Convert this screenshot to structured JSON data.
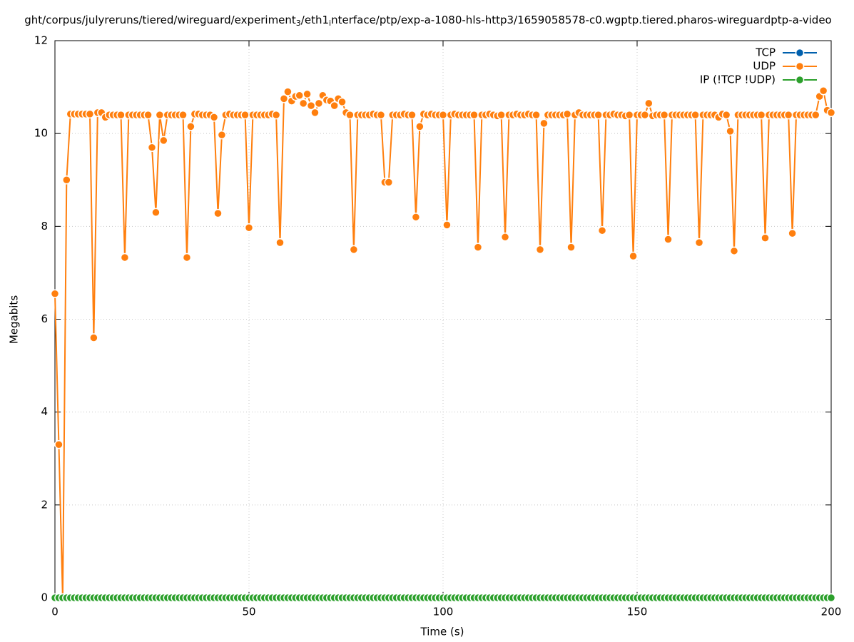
{
  "chart_data": {
    "type": "line",
    "title": [
      "ght/corpus/julyreruns/tiered/wireguard/experiment",
      "3",
      "/eth1",
      "i",
      "nterface/ptp/exp-a-1080-hls-http3/1659058578-c0.wgptp.tiered.pharos-wireguardptp-a-video"
    ],
    "x_label": "Time (s)",
    "y_label": "Megabits",
    "xlim": [
      0,
      200
    ],
    "xticks": [
      0,
      50,
      100,
      150,
      200
    ],
    "ylim": [
      0,
      12
    ],
    "yticks": [
      0,
      2,
      4,
      6,
      8,
      10,
      12
    ],
    "grid": true,
    "legend": "top-right",
    "x": [
      0,
      1,
      2,
      3,
      4,
      5,
      6,
      7,
      8,
      9,
      10,
      11,
      12,
      13,
      14,
      15,
      16,
      17,
      18,
      19,
      20,
      21,
      22,
      23,
      24,
      25,
      26,
      27,
      28,
      29,
      30,
      31,
      32,
      33,
      34,
      35,
      36,
      37,
      38,
      39,
      40,
      41,
      42,
      43,
      44,
      45,
      46,
      47,
      48,
      49,
      50,
      51,
      52,
      53,
      54,
      55,
      56,
      57,
      58,
      59,
      60,
      61,
      62,
      63,
      64,
      65,
      66,
      67,
      68,
      69,
      70,
      71,
      72,
      73,
      74,
      75,
      76,
      77,
      78,
      79,
      80,
      81,
      82,
      83,
      84,
      85,
      86,
      87,
      88,
      89,
      90,
      91,
      92,
      93,
      94,
      95,
      96,
      97,
      98,
      99,
      100,
      101,
      102,
      103,
      104,
      105,
      106,
      107,
      108,
      109,
      110,
      111,
      112,
      113,
      114,
      115,
      116,
      117,
      118,
      119,
      120,
      121,
      122,
      123,
      124,
      125,
      126,
      127,
      128,
      129,
      130,
      131,
      132,
      133,
      134,
      135,
      136,
      137,
      138,
      139,
      140,
      141,
      142,
      143,
      144,
      145,
      146,
      147,
      148,
      149,
      150,
      151,
      152,
      153,
      154,
      155,
      156,
      157,
      158,
      159,
      160,
      161,
      162,
      163,
      164,
      165,
      166,
      167,
      168,
      169,
      170,
      171,
      172,
      173,
      174,
      175,
      176,
      177,
      178,
      179,
      180,
      181,
      182,
      183,
      184,
      185,
      186,
      187,
      188,
      189,
      190,
      191,
      192,
      193,
      194,
      195,
      196,
      197,
      198,
      199,
      200
    ],
    "series": [
      {
        "name": "TCP",
        "color": "#0060ad",
        "values": [
          0,
          0,
          0,
          0,
          0,
          0,
          0,
          0,
          0,
          0,
          0,
          0,
          0,
          0,
          0,
          0,
          0,
          0,
          0,
          0,
          0,
          0,
          0,
          0,
          0,
          0,
          0,
          0,
          0,
          0,
          0,
          0,
          0,
          0,
          0,
          0,
          0,
          0,
          0,
          0,
          0,
          0,
          0,
          0,
          0,
          0,
          0,
          0,
          0,
          0,
          0,
          0,
          0,
          0,
          0,
          0,
          0,
          0,
          0,
          0,
          0,
          0,
          0,
          0,
          0,
          0,
          0,
          0,
          0,
          0,
          0,
          0,
          0,
          0,
          0,
          0,
          0,
          0,
          0,
          0,
          0,
          0,
          0,
          0,
          0,
          0,
          0,
          0,
          0,
          0,
          0,
          0,
          0,
          0,
          0,
          0,
          0,
          0,
          0,
          0,
          0,
          0,
          0,
          0,
          0,
          0,
          0,
          0,
          0,
          0,
          0,
          0,
          0,
          0,
          0,
          0,
          0,
          0,
          0,
          0,
          0,
          0,
          0,
          0,
          0,
          0,
          0,
          0,
          0,
          0,
          0,
          0,
          0,
          0,
          0,
          0,
          0,
          0,
          0,
          0,
          0,
          0,
          0,
          0,
          0,
          0,
          0,
          0,
          0,
          0,
          0,
          0,
          0,
          0,
          0,
          0,
          0,
          0,
          0,
          0,
          0,
          0,
          0,
          0,
          0,
          0,
          0,
          0,
          0,
          0,
          0,
          0,
          0,
          0,
          0,
          0,
          0,
          0,
          0,
          0,
          0,
          0,
          0,
          0,
          0,
          0,
          0,
          0,
          0,
          0,
          0,
          0,
          0,
          0,
          0,
          0,
          0,
          0,
          0,
          0,
          0
        ]
      },
      {
        "name": "UDP",
        "color": "#ff7f0e",
        "values": [
          6.55,
          3.3,
          0,
          9.0,
          10.42,
          10.42,
          10.42,
          10.42,
          10.42,
          10.42,
          5.6,
          10.45,
          10.45,
          10.35,
          10.4,
          10.4,
          10.4,
          10.4,
          7.33,
          10.4,
          10.4,
          10.4,
          10.4,
          10.4,
          10.4,
          9.7,
          8.3,
          10.4,
          9.85,
          10.4,
          10.4,
          10.4,
          10.4,
          10.4,
          7.33,
          10.15,
          10.42,
          10.42,
          10.4,
          10.4,
          10.4,
          10.35,
          8.28,
          9.97,
          10.4,
          10.42,
          10.4,
          10.4,
          10.4,
          10.4,
          7.97,
          10.4,
          10.4,
          10.4,
          10.4,
          10.4,
          10.42,
          10.4,
          7.65,
          10.75,
          10.9,
          10.7,
          10.8,
          10.82,
          10.65,
          10.85,
          10.6,
          10.45,
          10.65,
          10.82,
          10.72,
          10.7,
          10.6,
          10.75,
          10.68,
          10.45,
          10.4,
          7.5,
          10.4,
          10.4,
          10.4,
          10.4,
          10.42,
          10.4,
          10.4,
          8.95,
          8.95,
          10.4,
          10.4,
          10.4,
          10.42,
          10.4,
          10.4,
          8.2,
          10.15,
          10.42,
          10.4,
          10.42,
          10.4,
          10.4,
          10.4,
          8.03,
          10.4,
          10.42,
          10.4,
          10.4,
          10.4,
          10.4,
          10.4,
          7.55,
          10.4,
          10.4,
          10.42,
          10.4,
          10.38,
          10.4,
          7.77,
          10.4,
          10.4,
          10.42,
          10.4,
          10.4,
          10.42,
          10.4,
          10.4,
          7.5,
          10.22,
          10.4,
          10.4,
          10.4,
          10.4,
          10.4,
          10.42,
          7.55,
          10.4,
          10.45,
          10.4,
          10.4,
          10.4,
          10.4,
          10.4,
          7.91,
          10.4,
          10.4,
          10.42,
          10.4,
          10.4,
          10.38,
          10.4,
          7.36,
          10.4,
          10.4,
          10.4,
          10.65,
          10.38,
          10.4,
          10.4,
          10.4,
          7.72,
          10.4,
          10.4,
          10.4,
          10.4,
          10.4,
          10.4,
          10.4,
          7.65,
          10.4,
          10.4,
          10.4,
          10.4,
          10.35,
          10.42,
          10.4,
          10.05,
          7.47,
          10.4,
          10.4,
          10.4,
          10.4,
          10.4,
          10.4,
          10.4,
          7.75,
          10.4,
          10.4,
          10.4,
          10.4,
          10.4,
          10.4,
          7.85,
          10.4,
          10.4,
          10.4,
          10.4,
          10.4,
          10.4,
          10.8,
          10.92,
          10.5,
          10.45
        ]
      },
      {
        "name": "IP (!TCP  !UDP)",
        "color": "#2ca02c",
        "values": [
          0,
          0,
          0,
          0,
          0,
          0,
          0,
          0,
          0,
          0,
          0,
          0,
          0,
          0,
          0,
          0,
          0,
          0,
          0,
          0,
          0,
          0,
          0,
          0,
          0,
          0,
          0,
          0,
          0,
          0,
          0,
          0,
          0,
          0,
          0,
          0,
          0,
          0,
          0,
          0,
          0,
          0,
          0,
          0,
          0,
          0,
          0,
          0,
          0,
          0,
          0,
          0,
          0,
          0,
          0,
          0,
          0,
          0,
          0,
          0,
          0,
          0,
          0,
          0,
          0,
          0,
          0,
          0,
          0,
          0,
          0,
          0,
          0,
          0,
          0,
          0,
          0,
          0,
          0,
          0,
          0,
          0,
          0,
          0,
          0,
          0,
          0,
          0,
          0,
          0,
          0,
          0,
          0,
          0,
          0,
          0,
          0,
          0,
          0,
          0,
          0,
          0,
          0,
          0,
          0,
          0,
          0,
          0,
          0,
          0,
          0,
          0,
          0,
          0,
          0,
          0,
          0,
          0,
          0,
          0,
          0,
          0,
          0,
          0,
          0,
          0,
          0,
          0,
          0,
          0,
          0,
          0,
          0,
          0,
          0,
          0,
          0,
          0,
          0,
          0,
          0,
          0,
          0,
          0,
          0,
          0,
          0,
          0,
          0,
          0,
          0,
          0,
          0,
          0,
          0,
          0,
          0,
          0,
          0,
          0,
          0,
          0,
          0,
          0,
          0,
          0,
          0,
          0,
          0,
          0,
          0,
          0,
          0,
          0,
          0,
          0,
          0,
          0,
          0,
          0,
          0,
          0,
          0,
          0,
          0,
          0,
          0,
          0,
          0,
          0,
          0,
          0,
          0,
          0,
          0,
          0,
          0,
          0,
          0,
          0,
          0
        ]
      }
    ]
  }
}
